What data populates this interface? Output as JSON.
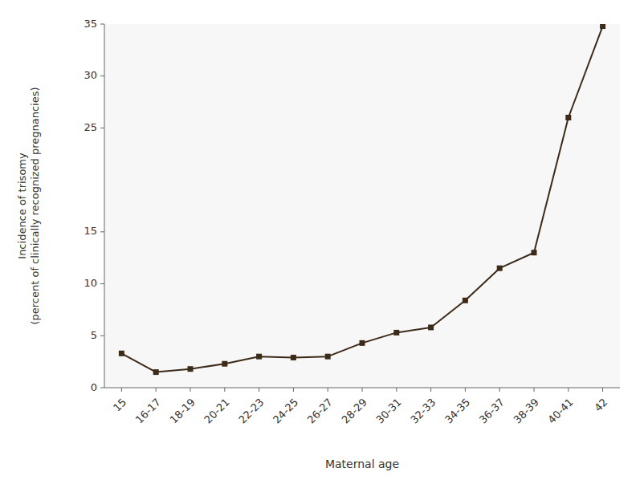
{
  "chart_data": {
    "type": "line",
    "xlabel": "Maternal age",
    "ylabel": "Incidence of trisomy\n(percent of clinically recognized pregnancies)",
    "categories": [
      "15",
      "16-17",
      "18-19",
      "20-21",
      "22-23",
      "24-25",
      "26-27",
      "28-29",
      "30-31",
      "32-33",
      "34-35",
      "36-37",
      "38-39",
      "40-41",
      "42"
    ],
    "values": [
      3.3,
      1.5,
      1.8,
      2.3,
      3.0,
      2.9,
      3.0,
      4.3,
      5.3,
      5.8,
      8.4,
      11.5,
      13.0,
      26.0,
      34.8
    ],
    "color": "#3d2b1a",
    "marker": "square",
    "ylim": [
      0,
      35
    ],
    "yticks": [
      0,
      5,
      10,
      15,
      25,
      30,
      35
    ],
    "grid": false
  }
}
